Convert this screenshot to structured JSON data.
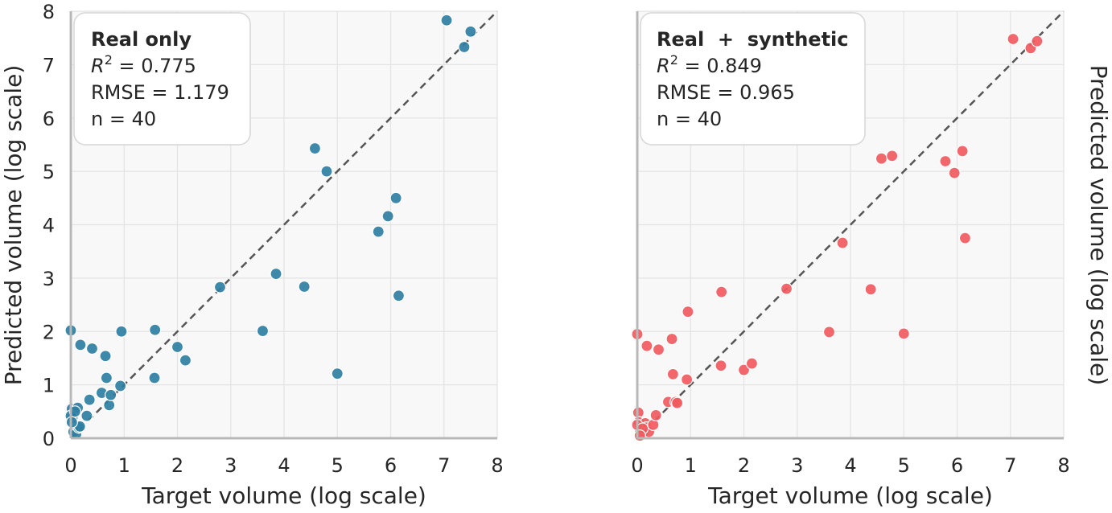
{
  "chart_data": [
    {
      "type": "scatter",
      "xlabel": "Target volume (log scale)",
      "ylabel": "Predicted volume (log scale)",
      "xlim": [
        0,
        8
      ],
      "ylim": [
        0,
        8
      ],
      "x_ticks": [
        "0",
        "1",
        "2",
        "3",
        "4",
        "5",
        "6",
        "7",
        "8"
      ],
      "y_ticks": [
        "0",
        "1",
        "2",
        "3",
        "4",
        "5",
        "6",
        "7",
        "8"
      ],
      "grid": true,
      "reference_line": "y = x (dashed)",
      "annotation": {
        "title": "Real only",
        "r2_symbol": "R",
        "r2_sup": "2",
        "r2_value": " = 0.775",
        "rmse": "RMSE = 1.179",
        "n": "n = 40"
      },
      "color": "#2e7fa3",
      "x": [
        0.0,
        0.02,
        0.03,
        0.05,
        0.1,
        0.13,
        0.15,
        0.17,
        0.18,
        0.3,
        0.35,
        0.4,
        0.58,
        0.65,
        0.67,
        0.72,
        0.75,
        0.93,
        0.95,
        1.57,
        1.58,
        2.0,
        2.15,
        2.8,
        3.6,
        3.85,
        4.38,
        4.58,
        4.8,
        5.0,
        5.77,
        5.95,
        6.1,
        6.15,
        7.05,
        7.38,
        7.5,
        0.0,
        0.02,
        0.08
      ],
      "y": [
        2.02,
        0.55,
        0.38,
        0.12,
        0.08,
        0.57,
        0.2,
        0.22,
        1.75,
        0.42,
        0.72,
        1.68,
        0.85,
        1.54,
        1.13,
        0.62,
        0.81,
        0.98,
        2.0,
        1.13,
        2.03,
        1.71,
        1.46,
        2.83,
        2.01,
        3.08,
        2.84,
        5.43,
        5.0,
        1.21,
        3.87,
        4.16,
        4.5,
        2.67,
        7.83,
        7.33,
        7.62,
        0.42,
        0.3,
        0.5
      ]
    },
    {
      "type": "scatter",
      "xlabel": "Target volume (log scale)",
      "ylabel": "Predicted volume (log scale)",
      "xlim": [
        0,
        8
      ],
      "ylim": [
        0,
        8
      ],
      "x_ticks": [
        "0",
        "1",
        "2",
        "3",
        "4",
        "5",
        "6",
        "7",
        "8"
      ],
      "grid": true,
      "reference_line": "y = x (dashed)",
      "annotation": {
        "title": "Real  +  synthetic",
        "r2_symbol": "R",
        "r2_sup": "2",
        "r2_value": " = 0.849",
        "rmse": "RMSE = 0.965",
        "n": "n = 40"
      },
      "color": "#f05a5f",
      "x": [
        0.0,
        0.02,
        0.03,
        0.05,
        0.12,
        0.15,
        0.17,
        0.18,
        0.22,
        0.3,
        0.35,
        0.4,
        0.58,
        0.65,
        0.67,
        0.72,
        0.75,
        0.93,
        0.95,
        1.57,
        1.58,
        2.0,
        2.15,
        2.8,
        3.6,
        3.85,
        4.38,
        4.58,
        4.78,
        5.0,
        5.78,
        5.95,
        6.1,
        6.15,
        7.05,
        7.38,
        7.5,
        0.0,
        0.1,
        0.05
      ],
      "y": [
        1.95,
        0.48,
        0.3,
        0.15,
        0.12,
        0.28,
        0.2,
        1.73,
        0.12,
        0.25,
        0.43,
        1.66,
        0.68,
        1.86,
        1.2,
        0.68,
        0.66,
        1.1,
        2.37,
        1.36,
        2.74,
        1.28,
        1.4,
        2.8,
        1.99,
        3.66,
        2.79,
        5.24,
        5.29,
        1.96,
        5.19,
        4.97,
        5.38,
        3.75,
        7.48,
        7.31,
        7.44,
        0.25,
        0.18,
        0.05
      ]
    }
  ]
}
